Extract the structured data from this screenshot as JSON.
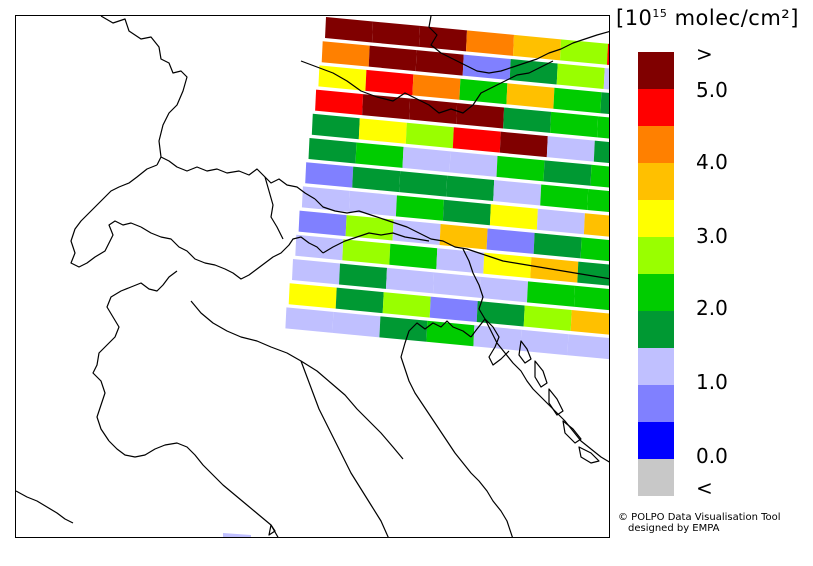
{
  "legend": {
    "unit_prefix": "[10",
    "unit_exp": "15",
    "unit_suffix": " molec/cm²]",
    "colors": [
      "#800000",
      "#ff0000",
      "#ff8000",
      "#ffc000",
      "#ffff00",
      "#99ff00",
      "#00cc00",
      "#009933",
      "#c0c0ff",
      "#8080ff",
      "#0000ff",
      "#c8c8c8"
    ],
    "labels": [
      ">",
      "5.0",
      "4.0",
      "3.0",
      "2.0",
      "1.0",
      "0.0",
      "<"
    ]
  },
  "credit": {
    "line1": "© POLPO Data Visualisation Tool",
    "line2": "designed by EMPA"
  },
  "swath": {
    "rows": [
      [
        "#800000",
        "#800000",
        "#800000",
        "#ff8000",
        "#ffc000",
        "#99ff00",
        "#ff0000"
      ],
      [
        "#ff8000",
        "#800000",
        "#800000",
        "#8080ff",
        "#009933",
        "#99ff00",
        "#c0c0ff"
      ],
      [
        "#ffff00",
        "#ff0000",
        "#ff8000",
        "#00cc00",
        "#ffc000",
        "#00cc00",
        "#009933"
      ],
      [
        "#ff0000",
        "#800000",
        "#800000",
        "#800000",
        "#009933",
        "#00cc00",
        "#00cc00"
      ],
      [
        "#009933",
        "#ffff00",
        "#99ff00",
        "#ff0000",
        "#800000",
        "#c0c0ff",
        "#009933"
      ],
      [
        "#009933",
        "#00cc00",
        "#c0c0ff",
        "#c0c0ff",
        "#00cc00",
        "#009933",
        "#00cc00"
      ],
      [
        "#8080ff",
        "#009933",
        "#009933",
        "#009933",
        "#c0c0ff",
        "#00cc00",
        "#00cc00"
      ],
      [
        "#c0c0ff",
        "#c0c0ff",
        "#00cc00",
        "#009933",
        "#ffff00",
        "#c0c0ff",
        "#ffc000"
      ],
      [
        "#8080ff",
        "#99ff00",
        "#c0c0ff",
        "#ffc000",
        "#8080ff",
        "#009933",
        "#00cc00"
      ],
      [
        "#c0c0ff",
        "#99ff00",
        "#00cc00",
        "#c0c0ff",
        "#ffff00",
        "#ffc000",
        "#009933"
      ],
      [
        "#c0c0ff",
        "#009933",
        "#c0c0ff",
        "#c0c0ff",
        "#c0c0ff",
        "#00cc00",
        "#00cc00"
      ],
      [
        "#ffff00",
        "#009933",
        "#99ff00",
        "#8080ff",
        "#009933",
        "#99ff00",
        "#ffc000"
      ],
      [
        "#c0c0ff",
        "#c0c0ff",
        "#009933",
        "#00cc00",
        "#c0c0ff",
        "#c0c0ff",
        "#c0c0ff"
      ]
    ]
  }
}
